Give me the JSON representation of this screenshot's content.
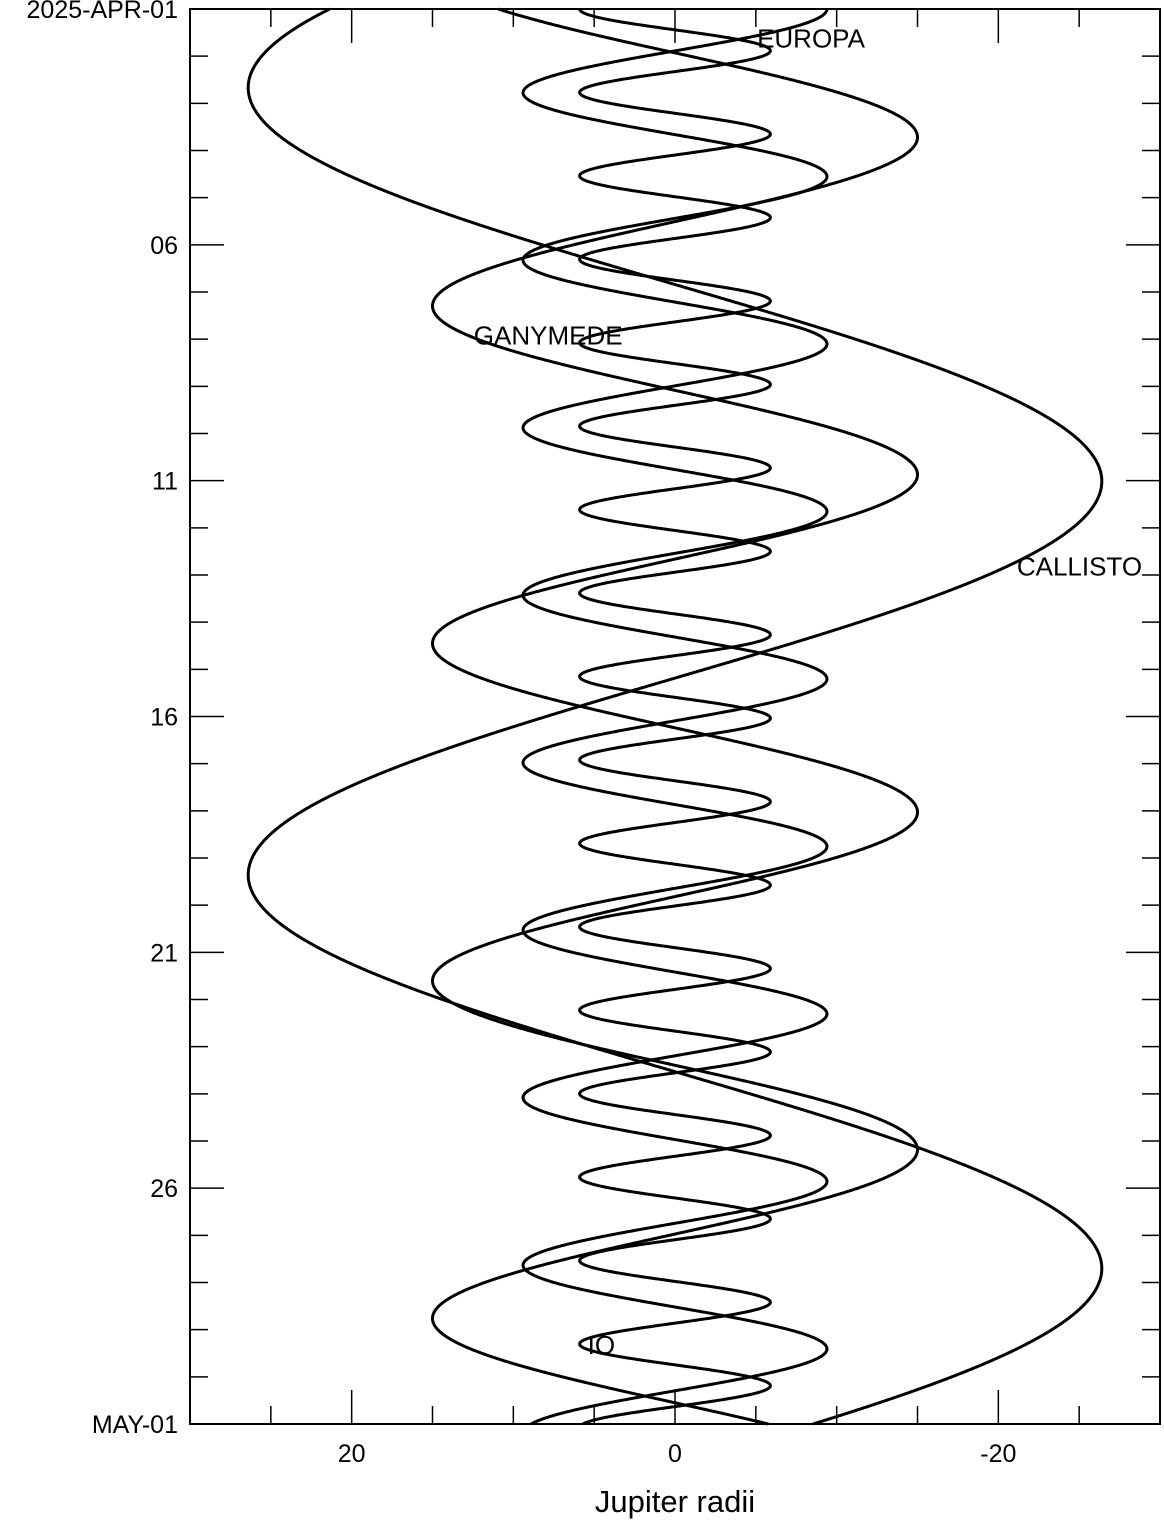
{
  "chart_data": {
    "type": "line",
    "title": "",
    "xlabel": "Jupiter radii",
    "ylabel": "",
    "xlim": [
      30,
      -30
    ],
    "ylim_days": [
      0,
      30
    ],
    "x_ticks": [
      {
        "value": 20,
        "label": "20"
      },
      {
        "value": 0,
        "label": "0"
      },
      {
        "value": -20,
        "label": "-20"
      }
    ],
    "y_ticks": [
      {
        "day": 0,
        "label": "2025-APR-01"
      },
      {
        "day": 5,
        "label": "06"
      },
      {
        "day": 10,
        "label": "11"
      },
      {
        "day": 15,
        "label": "16"
      },
      {
        "day": 20,
        "label": "21"
      },
      {
        "day": 25,
        "label": "26"
      },
      {
        "day": 30,
        "label": "MAY-01"
      }
    ],
    "grid": false,
    "jupiter_band": {
      "x_min": -1,
      "x_max": 1,
      "color": "#777777"
    },
    "series": [
      {
        "name": "IO",
        "amplitude": 5.9,
        "period_days": 1.769,
        "phase": 0.0,
        "label_day": 28.3
      },
      {
        "name": "EUROPA",
        "amplitude": 9.4,
        "period_days": 3.551,
        "phase": -0.5,
        "label_day": 0.6
      },
      {
        "name": "GANYMEDE",
        "amplitude": 15.0,
        "period_days": 7.155,
        "phase": 0.88,
        "label_day": 6.9
      },
      {
        "name": "CALLISTO",
        "amplitude": 26.4,
        "period_days": 16.689,
        "phase": 0.1,
        "label_day": 11.8
      }
    ]
  }
}
